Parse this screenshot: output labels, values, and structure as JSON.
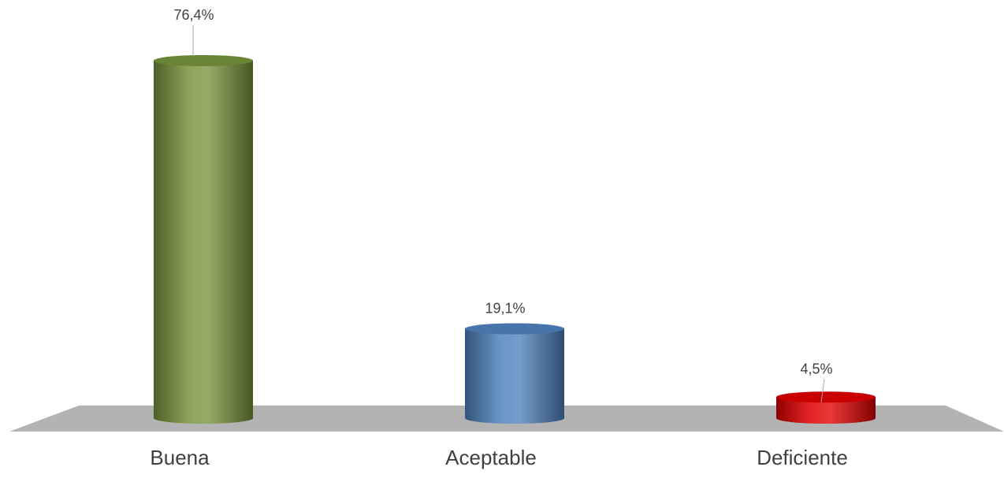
{
  "chart_data": {
    "type": "bar",
    "title": "",
    "xlabel": "",
    "ylabel": "",
    "categories": [
      "Buena",
      "Aceptable",
      "Deficiente"
    ],
    "values": [
      76.4,
      19.1,
      4.5
    ],
    "value_labels": [
      "76,4%",
      "19,1%",
      "4,5%"
    ],
    "ylim": [
      0,
      80
    ],
    "grid": false,
    "legend": "none",
    "style": "3d-cylinder",
    "colors": [
      "#76933c",
      "#4f81bd",
      "#e00000"
    ]
  }
}
